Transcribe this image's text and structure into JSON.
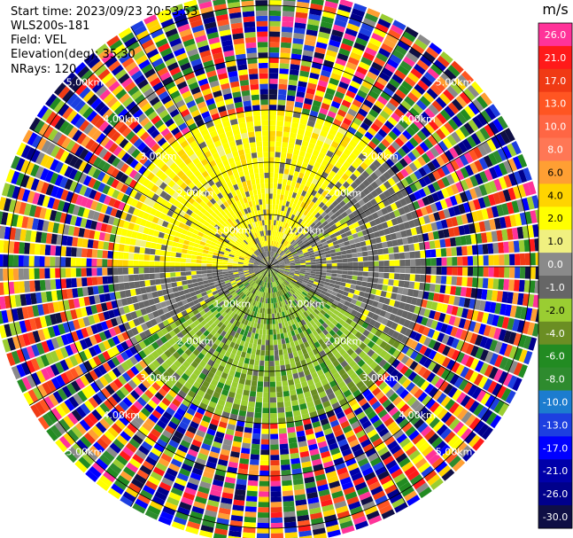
{
  "info": {
    "start_time": "Start time: 2023/09/23 20:53:53",
    "device": "WLS200s-181",
    "field": "Field: VEL",
    "elevation": "Elevation(deg): 35.30",
    "nrays": "NRays: 120"
  },
  "chart_data": {
    "type": "ppi",
    "nrays": 120,
    "range_rings_km": [
      1.0,
      2.0,
      3.0,
      4.0,
      5.0
    ],
    "ring_labels": [
      "1.00km",
      "2.00km",
      "3.00km",
      "4.00km",
      "5.00km"
    ],
    "colorbar": {
      "unit": "m/s",
      "ticks": [
        "26.0",
        "21.0",
        "17.0",
        "13.0",
        "10.0",
        "8.0",
        "6.0",
        "4.0",
        "2.0",
        "1.0",
        "0.0",
        "-1.0",
        "-2.0",
        "-4.0",
        "-6.0",
        "-8.0",
        "-10.0",
        "-13.0",
        "-17.0",
        "-21.0",
        "-26.0",
        "-30.0"
      ],
      "colors": [
        "#ff3399",
        "#ff1a1a",
        "#f03a14",
        "#ff5522",
        "#ff6644",
        "#ff7755",
        "#ff9f33",
        "#ffd400",
        "#ffff00",
        "#f0f080",
        "#8a8a8a",
        "#666666",
        "#9acd32",
        "#6b8e23",
        "#228b22",
        "#2e8b2e",
        "#1c7ccf",
        "#1d3fe0",
        "#0000ff",
        "#0000aa",
        "#00008b",
        "#0f0f45"
      ]
    },
    "sectors": [
      {
        "from_deg": 270,
        "to_deg": 45,
        "inner_km": 0.4,
        "outer_km": 3.0,
        "dominant": "2.0"
      },
      {
        "from_deg": 45,
        "to_deg": 120,
        "inner_km": 0.0,
        "outer_km": 3.0,
        "dominant": "-1.0"
      },
      {
        "from_deg": 120,
        "to_deg": 240,
        "inner_km": 0.0,
        "outer_km": 3.5,
        "dominant": "-2.0"
      },
      {
        "from_deg": 240,
        "to_deg": 270,
        "inner_km": 0.0,
        "outer_km": 3.0,
        "dominant": "-1.0"
      }
    ],
    "far_range": {
      "from_km": 3.0,
      "to_km": 5.3,
      "pattern": "noise"
    }
  }
}
